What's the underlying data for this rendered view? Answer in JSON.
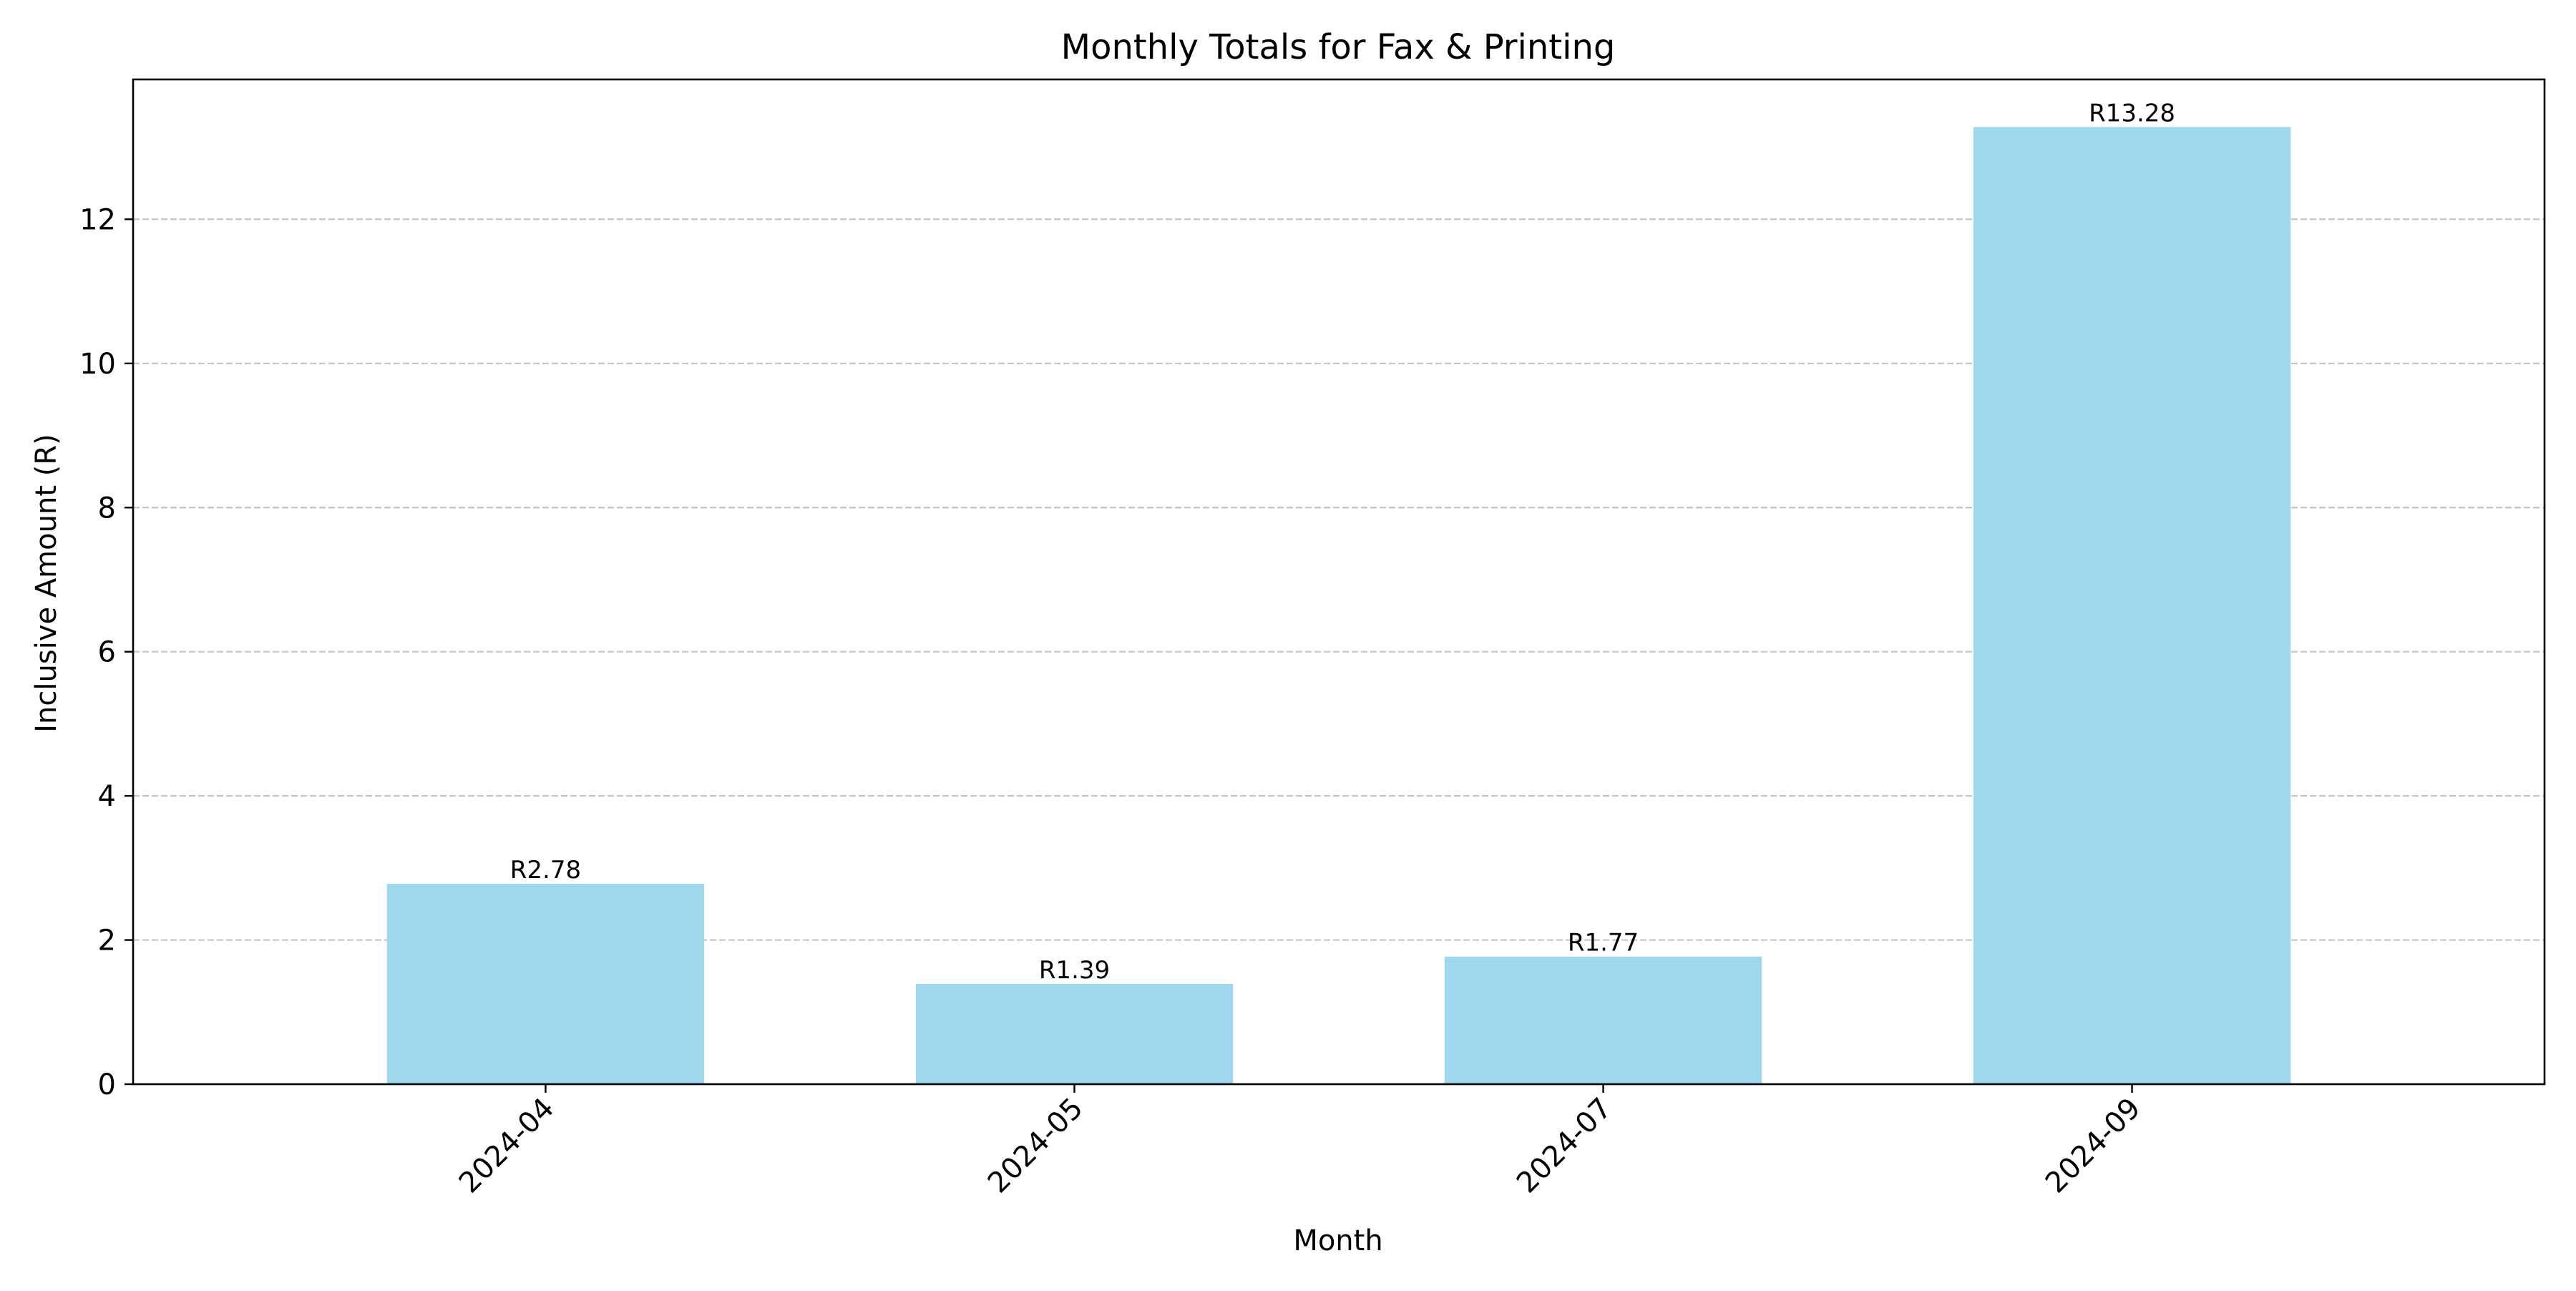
{
  "chart_data": {
    "type": "bar",
    "title": "Monthly Totals for Fax & Printing",
    "xlabel": "Month",
    "ylabel": "Inclusive Amount (R)",
    "categories": [
      "2024-04",
      "2024-05",
      "2024-07",
      "2024-09"
    ],
    "values": [
      2.78,
      1.39,
      1.77,
      13.28
    ],
    "data_labels": [
      "R2.78",
      "R1.39",
      "R1.77",
      "R13.28"
    ],
    "ylim": [
      0,
      13.94
    ],
    "yticks": [
      0,
      2,
      4,
      6,
      8,
      10,
      12
    ],
    "ytick_labels": [
      "0",
      "2",
      "4",
      "6",
      "8",
      "10",
      "12"
    ],
    "grid": "horizontal dashed",
    "legend": "none",
    "colors": {
      "bar": "#9fd7ec",
      "grid": "#c4c4c4",
      "axis": "#000000"
    }
  }
}
